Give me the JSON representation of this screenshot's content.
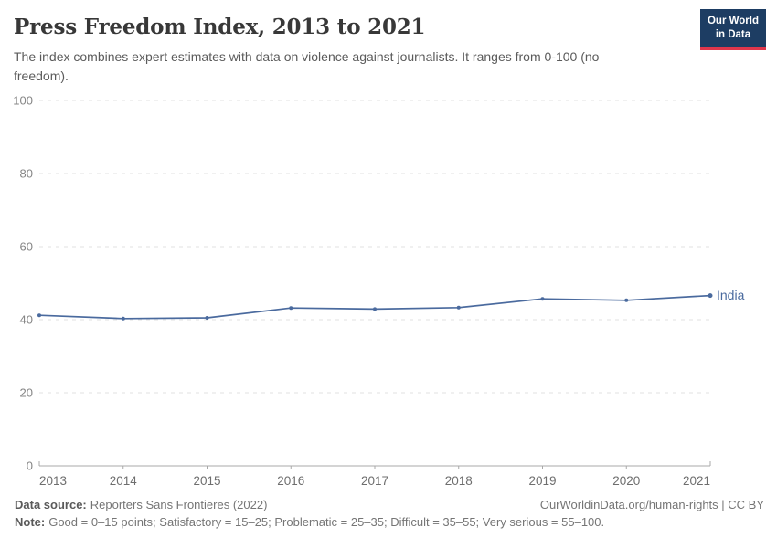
{
  "header": {
    "title": "Press Freedom Index, 2013 to 2021",
    "subtitle": "The index combines expert estimates with data on violence against journalists. It ranges from 0-100 (no freedom).",
    "logo": {
      "line1": "Our World",
      "line2": "in Data"
    }
  },
  "colors": {
    "line": "#4a6a9e",
    "logo_bg": "#1d3d63",
    "logo_underline": "#e0364b",
    "grid": "#e2e2e2",
    "axis": "#a8a8a8"
  },
  "chart_data": {
    "type": "line",
    "title": "Press Freedom Index, 2013 to 2021",
    "x": [
      2013,
      2014,
      2015,
      2016,
      2017,
      2018,
      2019,
      2020,
      2021
    ],
    "series": [
      {
        "name": "India",
        "color": "#4a6a9e",
        "values": [
          41.2,
          40.3,
          40.5,
          43.2,
          42.9,
          43.3,
          45.7,
          45.3,
          46.6
        ]
      }
    ],
    "ylim": [
      0,
      100
    ],
    "yticks": [
      0,
      20,
      40,
      60,
      80,
      100
    ],
    "xlabel": "",
    "ylabel": "",
    "grid": "dashed-horizontal",
    "legend_position": "end-of-line-label"
  },
  "footer": {
    "data_source_label": "Data source:",
    "data_source_value": "Reporters Sans Frontieres (2022)",
    "link": "OurWorldinData.org/human-rights | CC BY",
    "note_label": "Note:",
    "note_value": "Good = 0–15 points; Satisfactory = 15–25; Problematic = 25–35; Difficult = 35–55; Very serious = 55–100."
  }
}
